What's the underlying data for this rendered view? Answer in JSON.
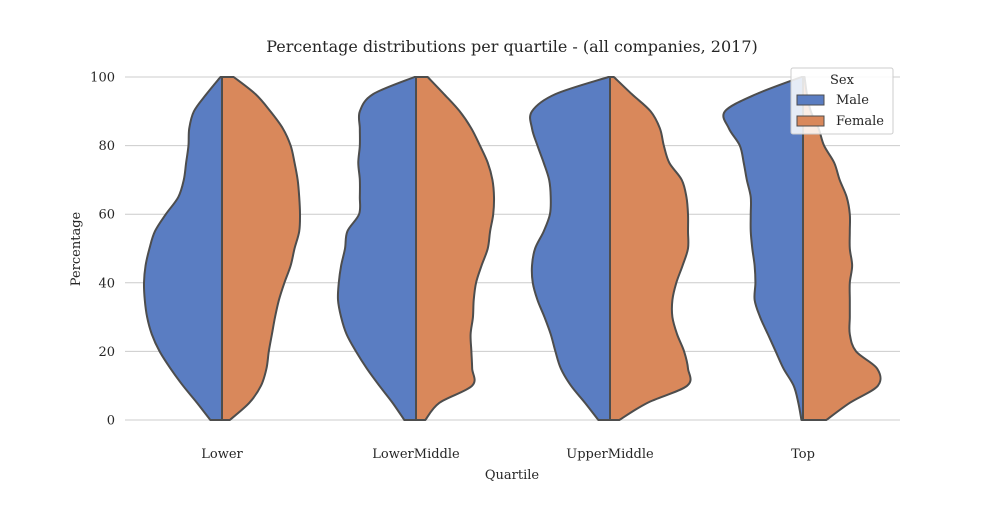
{
  "chart_data": {
    "type": "violin",
    "title": "Percentage distributions per quartile - (all companies, 2017)",
    "xlabel": "Quartile",
    "ylabel": "Percentage",
    "categories": [
      "Lower",
      "LowerMiddle",
      "UpperMiddle",
      "Top"
    ],
    "ylim": [
      0,
      100
    ],
    "yticks": [
      0,
      20,
      40,
      60,
      80,
      100
    ],
    "grid": "horizontal",
    "legend": {
      "title": "Sex",
      "placement": "top-right"
    },
    "series": [
      {
        "name": "Male",
        "color": "#5a7dc2",
        "side": "left",
        "range": [
          [
            0,
            100
          ],
          [
            0,
            100
          ],
          [
            0,
            100
          ],
          [
            0,
            100
          ]
        ],
        "density": [
          [
            [
              0,
              0.15
            ],
            [
              5,
              0.32
            ],
            [
              10,
              0.5
            ],
            [
              15,
              0.66
            ],
            [
              20,
              0.8
            ],
            [
              25,
              0.9
            ],
            [
              30,
              0.96
            ],
            [
              35,
              0.99
            ],
            [
              40,
              1.0
            ],
            [
              45,
              0.98
            ],
            [
              50,
              0.93
            ],
            [
              55,
              0.86
            ],
            [
              60,
              0.72
            ],
            [
              65,
              0.56
            ],
            [
              70,
              0.49
            ],
            [
              75,
              0.46
            ],
            [
              80,
              0.43
            ],
            [
              85,
              0.42
            ],
            [
              90,
              0.36
            ],
            [
              95,
              0.2
            ],
            [
              100,
              0.02
            ]
          ],
          [
            [
              0,
              0.15
            ],
            [
              5,
              0.3
            ],
            [
              10,
              0.47
            ],
            [
              15,
              0.63
            ],
            [
              20,
              0.77
            ],
            [
              25,
              0.89
            ],
            [
              30,
              0.96
            ],
            [
              35,
              1.0
            ],
            [
              40,
              0.99
            ],
            [
              45,
              0.96
            ],
            [
              50,
              0.91
            ],
            [
              55,
              0.88
            ],
            [
              60,
              0.73
            ],
            [
              65,
              0.72
            ],
            [
              70,
              0.72
            ],
            [
              75,
              0.74
            ],
            [
              80,
              0.72
            ],
            [
              85,
              0.72
            ],
            [
              90,
              0.72
            ],
            [
              95,
              0.55
            ],
            [
              100,
              0.02
            ]
          ],
          [
            [
              0,
              0.15
            ],
            [
              5,
              0.32
            ],
            [
              10,
              0.5
            ],
            [
              15,
              0.63
            ],
            [
              20,
              0.7
            ],
            [
              25,
              0.76
            ],
            [
              30,
              0.84
            ],
            [
              35,
              0.93
            ],
            [
              40,
              0.99
            ],
            [
              45,
              1.0
            ],
            [
              50,
              0.96
            ],
            [
              55,
              0.85
            ],
            [
              60,
              0.77
            ],
            [
              65,
              0.76
            ],
            [
              70,
              0.78
            ],
            [
              75,
              0.85
            ],
            [
              80,
              0.93
            ],
            [
              85,
              1.0
            ],
            [
              90,
              1.0
            ],
            [
              95,
              0.7
            ],
            [
              100,
              0.02
            ]
          ],
          [
            [
              0,
              0.02
            ],
            [
              5,
              0.06
            ],
            [
              10,
              0.12
            ],
            [
              15,
              0.25
            ],
            [
              20,
              0.35
            ],
            [
              25,
              0.45
            ],
            [
              30,
              0.55
            ],
            [
              35,
              0.62
            ],
            [
              40,
              0.61
            ],
            [
              45,
              0.62
            ],
            [
              50,
              0.65
            ],
            [
              55,
              0.67
            ],
            [
              60,
              0.67
            ],
            [
              65,
              0.67
            ],
            [
              70,
              0.72
            ],
            [
              75,
              0.76
            ],
            [
              80,
              0.81
            ],
            [
              85,
              0.95
            ],
            [
              90,
              1.0
            ],
            [
              95,
              0.6
            ],
            [
              100,
              0.02
            ]
          ]
        ]
      },
      {
        "name": "Female",
        "color": "#d9885b",
        "side": "right",
        "range": [
          [
            0,
            100
          ],
          [
            0,
            100
          ],
          [
            0,
            100
          ],
          [
            0,
            100
          ]
        ],
        "density": [
          [
            [
              0,
              0.1
            ],
            [
              5,
              0.35
            ],
            [
              10,
              0.5
            ],
            [
              15,
              0.57
            ],
            [
              20,
              0.6
            ],
            [
              25,
              0.64
            ],
            [
              30,
              0.68
            ],
            [
              35,
              0.73
            ],
            [
              40,
              0.8
            ],
            [
              45,
              0.88
            ],
            [
              50,
              0.93
            ],
            [
              55,
              0.99
            ],
            [
              60,
              1.0
            ],
            [
              65,
              0.99
            ],
            [
              70,
              0.97
            ],
            [
              75,
              0.93
            ],
            [
              80,
              0.88
            ],
            [
              85,
              0.78
            ],
            [
              90,
              0.62
            ],
            [
              95,
              0.43
            ],
            [
              100,
              0.15
            ]
          ],
          [
            [
              0,
              0.12
            ],
            [
              5,
              0.3
            ],
            [
              10,
              0.72
            ],
            [
              15,
              0.72
            ],
            [
              20,
              0.71
            ],
            [
              25,
              0.7
            ],
            [
              30,
              0.73
            ],
            [
              35,
              0.74
            ],
            [
              40,
              0.77
            ],
            [
              45,
              0.84
            ],
            [
              50,
              0.92
            ],
            [
              55,
              0.95
            ],
            [
              60,
              0.99
            ],
            [
              65,
              1.0
            ],
            [
              70,
              0.98
            ],
            [
              75,
              0.92
            ],
            [
              80,
              0.82
            ],
            [
              85,
              0.71
            ],
            [
              90,
              0.56
            ],
            [
              95,
              0.36
            ],
            [
              100,
              0.15
            ]
          ],
          [
            [
              0,
              0.12
            ],
            [
              5,
              0.48
            ],
            [
              10,
              0.99
            ],
            [
              15,
              1.0
            ],
            [
              20,
              0.95
            ],
            [
              25,
              0.86
            ],
            [
              30,
              0.8
            ],
            [
              35,
              0.8
            ],
            [
              40,
              0.85
            ],
            [
              45,
              0.93
            ],
            [
              50,
              1.0
            ],
            [
              55,
              1.0
            ],
            [
              60,
              1.0
            ],
            [
              65,
              0.98
            ],
            [
              70,
              0.92
            ],
            [
              75,
              0.76
            ],
            [
              80,
              0.69
            ],
            [
              85,
              0.64
            ],
            [
              90,
              0.52
            ],
            [
              95,
              0.28
            ],
            [
              100,
              0.05
            ]
          ],
          [
            [
              0,
              0.3
            ],
            [
              5,
              0.6
            ],
            [
              10,
              0.96
            ],
            [
              15,
              0.95
            ],
            [
              20,
              0.68
            ],
            [
              25,
              0.6
            ],
            [
              30,
              0.6
            ],
            [
              35,
              0.6
            ],
            [
              40,
              0.6
            ],
            [
              45,
              0.63
            ],
            [
              50,
              0.6
            ],
            [
              55,
              0.6
            ],
            [
              60,
              0.6
            ],
            [
              65,
              0.56
            ],
            [
              70,
              0.47
            ],
            [
              75,
              0.4
            ],
            [
              80,
              0.27
            ],
            [
              85,
              0.2
            ],
            [
              90,
              0.1
            ],
            [
              95,
              0.05
            ],
            [
              100,
              0.02
            ]
          ]
        ]
      }
    ]
  }
}
